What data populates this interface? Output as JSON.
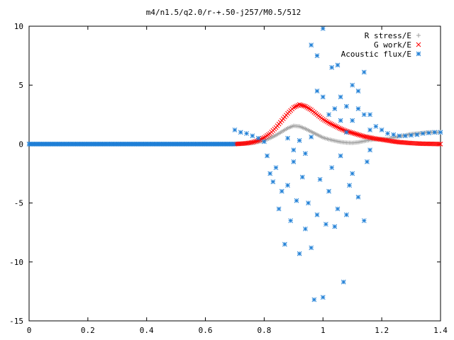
{
  "chart_data": {
    "type": "scatter",
    "title": "m4/n1.5/q2.0/r-+.50-j257/M0.5/512",
    "xlabel": "",
    "ylabel": "",
    "xlim": [
      0,
      1.4
    ],
    "ylim": [
      -15,
      10
    ],
    "x_ticks": [
      "0",
      "0.2",
      "0.4",
      "0.6",
      "0.8",
      "1",
      "1.2",
      "1.4"
    ],
    "y_ticks": [
      "10",
      "5",
      "0",
      "-5",
      "-10",
      "-15"
    ],
    "grid": false,
    "legend_position": "top-right",
    "series": [
      {
        "name": "R stress/E",
        "marker": "plus",
        "color": "#a0a0a0",
        "points": [
          [
            0.7,
            0.0
          ],
          [
            0.72,
            0.02
          ],
          [
            0.74,
            0.05
          ],
          [
            0.76,
            0.1
          ],
          [
            0.78,
            0.18
          ],
          [
            0.8,
            0.3
          ],
          [
            0.82,
            0.5
          ],
          [
            0.84,
            0.75
          ],
          [
            0.86,
            1.05
          ],
          [
            0.88,
            1.35
          ],
          [
            0.9,
            1.55
          ],
          [
            0.92,
            1.5
          ],
          [
            0.94,
            1.3
          ],
          [
            0.96,
            1.05
          ],
          [
            0.98,
            0.8
          ],
          [
            1.0,
            0.55
          ],
          [
            1.02,
            0.4
          ],
          [
            1.04,
            0.28
          ],
          [
            1.06,
            0.18
          ],
          [
            1.08,
            0.12
          ],
          [
            1.1,
            0.1
          ],
          [
            1.12,
            0.15
          ],
          [
            1.14,
            0.25
          ],
          [
            1.16,
            0.35
          ],
          [
            1.18,
            0.4
          ],
          [
            1.2,
            0.42
          ],
          [
            1.22,
            0.45
          ],
          [
            1.24,
            0.55
          ],
          [
            1.26,
            0.65
          ],
          [
            1.28,
            0.75
          ],
          [
            1.3,
            0.85
          ],
          [
            1.32,
            0.9
          ],
          [
            1.34,
            0.95
          ],
          [
            1.36,
            1.0
          ],
          [
            1.38,
            1.0
          ],
          [
            1.4,
            1.0
          ]
        ]
      },
      {
        "name": "G work/E",
        "marker": "cross",
        "color": "#ff0000",
        "points": [
          [
            0.7,
            0.0
          ],
          [
            0.72,
            0.03
          ],
          [
            0.74,
            0.07
          ],
          [
            0.76,
            0.15
          ],
          [
            0.78,
            0.3
          ],
          [
            0.8,
            0.55
          ],
          [
            0.82,
            0.9
          ],
          [
            0.84,
            1.4
          ],
          [
            0.86,
            2.0
          ],
          [
            0.88,
            2.6
          ],
          [
            0.9,
            3.1
          ],
          [
            0.92,
            3.35
          ],
          [
            0.94,
            3.2
          ],
          [
            0.96,
            2.9
          ],
          [
            0.98,
            2.5
          ],
          [
            1.0,
            2.1
          ],
          [
            1.02,
            1.8
          ],
          [
            1.04,
            1.55
          ],
          [
            1.06,
            1.3
          ],
          [
            1.08,
            1.1
          ],
          [
            1.1,
            0.95
          ],
          [
            1.12,
            0.8
          ],
          [
            1.14,
            0.65
          ],
          [
            1.16,
            0.55
          ],
          [
            1.18,
            0.45
          ],
          [
            1.2,
            0.38
          ],
          [
            1.22,
            0.3
          ],
          [
            1.24,
            0.22
          ],
          [
            1.26,
            0.16
          ],
          [
            1.28,
            0.12
          ],
          [
            1.3,
            0.08
          ],
          [
            1.32,
            0.05
          ],
          [
            1.34,
            0.03
          ],
          [
            1.36,
            0.02
          ],
          [
            1.38,
            0.01
          ],
          [
            1.4,
            0.0
          ]
        ]
      },
      {
        "name": "Acoustic flux/E",
        "marker": "star",
        "color": "#1f7fd6",
        "points": [
          [
            0.7,
            1.2
          ],
          [
            0.72,
            1.0
          ],
          [
            0.74,
            0.9
          ],
          [
            0.76,
            0.7
          ],
          [
            0.78,
            0.5
          ],
          [
            0.8,
            0.2
          ],
          [
            0.81,
            -1.0
          ],
          [
            0.82,
            -2.5
          ],
          [
            0.83,
            -3.2
          ],
          [
            0.84,
            -2.0
          ],
          [
            0.85,
            -5.5
          ],
          [
            0.86,
            -4.0
          ],
          [
            0.87,
            -8.5
          ],
          [
            0.88,
            -3.5
          ],
          [
            0.89,
            -6.5
          ],
          [
            0.9,
            -1.5
          ],
          [
            0.91,
            -4.8
          ],
          [
            0.92,
            -9.3
          ],
          [
            0.93,
            -2.8
          ],
          [
            0.94,
            -7.2
          ],
          [
            0.95,
            -5.0
          ],
          [
            0.96,
            -8.8
          ],
          [
            0.97,
            -13.2
          ],
          [
            0.98,
            -6.0
          ],
          [
            0.99,
            -3.0
          ],
          [
            1.0,
            -13.0
          ],
          [
            1.01,
            -6.8
          ],
          [
            1.02,
            -4.0
          ],
          [
            1.03,
            -2.0
          ],
          [
            1.04,
            -7.0
          ],
          [
            1.05,
            -5.5
          ],
          [
            1.06,
            -1.0
          ],
          [
            1.07,
            -11.7
          ],
          [
            1.08,
            -6.0
          ],
          [
            1.09,
            -3.5
          ],
          [
            1.1,
            -2.5
          ],
          [
            1.12,
            -4.5
          ],
          [
            1.14,
            -6.5
          ],
          [
            1.15,
            -1.5
          ],
          [
            1.16,
            -0.5
          ],
          [
            0.96,
            8.4
          ],
          [
            0.98,
            7.5
          ],
          [
            1.0,
            9.8
          ],
          [
            1.03,
            6.5
          ],
          [
            1.05,
            6.7
          ],
          [
            1.06,
            4.0
          ],
          [
            1.08,
            3.2
          ],
          [
            1.1,
            5.0
          ],
          [
            1.12,
            4.5
          ],
          [
            1.14,
            6.1
          ],
          [
            1.16,
            2.5
          ],
          [
            1.18,
            1.5
          ],
          [
            1.2,
            1.2
          ],
          [
            1.22,
            0.9
          ],
          [
            1.24,
            0.8
          ],
          [
            1.26,
            0.7
          ],
          [
            1.28,
            0.7
          ],
          [
            1.3,
            0.75
          ],
          [
            1.32,
            0.8
          ],
          [
            1.34,
            0.9
          ],
          [
            1.36,
            0.95
          ],
          [
            1.38,
            1.0
          ],
          [
            1.4,
            1.0
          ],
          [
            0.98,
            4.5
          ],
          [
            1.0,
            4.0
          ],
          [
            1.02,
            2.5
          ],
          [
            1.04,
            3.0
          ],
          [
            1.06,
            2.0
          ],
          [
            1.08,
            1.0
          ],
          [
            1.1,
            2.0
          ],
          [
            1.12,
            3.0
          ],
          [
            1.14,
            2.5
          ],
          [
            1.16,
            1.2
          ],
          [
            0.88,
            0.5
          ],
          [
            0.9,
            -0.5
          ],
          [
            0.92,
            0.3
          ],
          [
            0.94,
            -0.8
          ],
          [
            0.96,
            0.6
          ]
        ]
      }
    ]
  }
}
